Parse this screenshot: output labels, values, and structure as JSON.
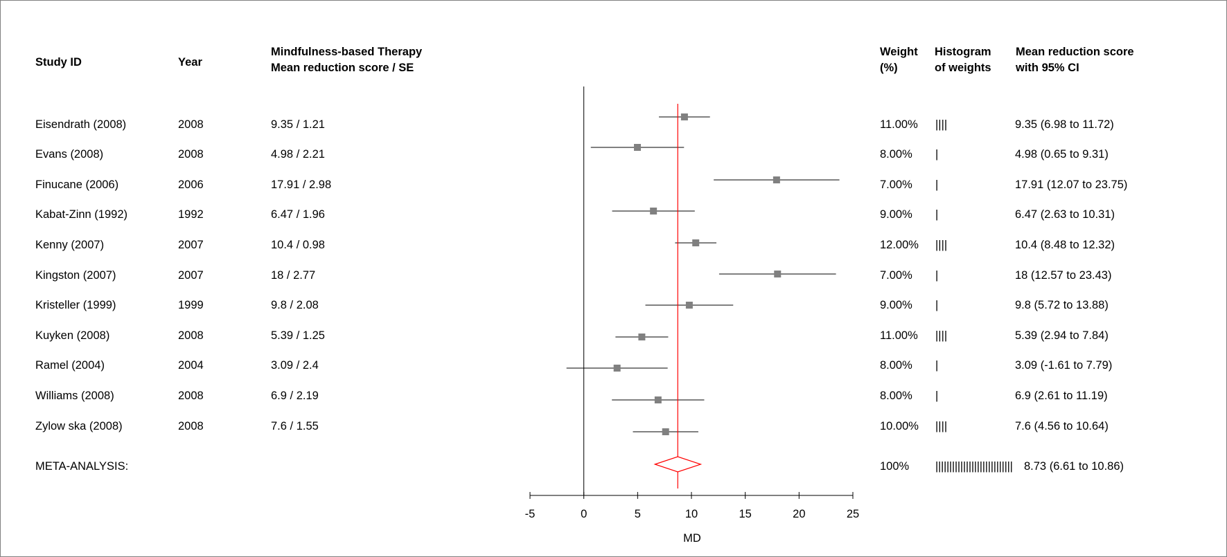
{
  "headers": {
    "study_id": "Study ID",
    "year": "Year",
    "therapy_line1": "Mindfulness-based Therapy",
    "therapy_line2": "Mean reduction score / SE",
    "weight_line1": "Weight",
    "weight_line2": "(%)",
    "hist_line1": "Histogram",
    "hist_line2": "of weights",
    "ci_line1": "Mean reduction score",
    "ci_line2": "with 95% CI"
  },
  "rows": [
    {
      "study": "Eisendrath (2008)",
      "year": "2008",
      "score_se": "9.35 / 1.21",
      "weight": "11.00%",
      "hist": "||||",
      "ci_text": "9.35 (6.98  to  11.72)"
    },
    {
      "study": "Evans (2008)",
      "year": "2008",
      "score_se": "4.98 / 2.21",
      "weight": "8.00%",
      "hist": "|",
      "ci_text": "4.98 (0.65  to  9.31)"
    },
    {
      "study": "Finucane (2006)",
      "year": "2006",
      "score_se": "17.91 / 2.98",
      "weight": "7.00%",
      "hist": "|",
      "ci_text": "17.91 (12.07  to  23.75)"
    },
    {
      "study": "Kabat-Zinn (1992)",
      "year": "1992",
      "score_se": "6.47 / 1.96",
      "weight": "9.00%",
      "hist": "|",
      "ci_text": "6.47 (2.63  to  10.31)"
    },
    {
      "study": "Kenny (2007)",
      "year": "2007",
      "score_se": "10.4 / 0.98",
      "weight": "12.00%",
      "hist": "||||",
      "ci_text": "10.4 (8.48  to  12.32)"
    },
    {
      "study": "Kingston (2007)",
      "year": "2007",
      "score_se": "18 / 2.77",
      "weight": "7.00%",
      "hist": "|",
      "ci_text": "18 (12.57  to  23.43)"
    },
    {
      "study": "Kristeller (1999)",
      "year": "1999",
      "score_se": "9.8 / 2.08",
      "weight": "9.00%",
      "hist": "|",
      "ci_text": "9.8 (5.72  to  13.88)"
    },
    {
      "study": "Kuyken (2008)",
      "year": "2008",
      "score_se": "5.39 / 1.25",
      "weight": "11.00%",
      "hist": "||||",
      "ci_text": "5.39 (2.94  to  7.84)"
    },
    {
      "study": "Ramel (2004)",
      "year": "2004",
      "score_se": "3.09 / 2.4",
      "weight": "8.00%",
      "hist": "|",
      "ci_text": "3.09 (-1.61  to  7.79)"
    },
    {
      "study": "Williams (2008)",
      "year": "2008",
      "score_se": "6.9 / 2.19",
      "weight": "8.00%",
      "hist": "|",
      "ci_text": "6.9 (2.61  to  11.19)"
    },
    {
      "study": "Zylow ska (2008)",
      "year": "2008",
      "score_se": "7.6 / 1.55",
      "weight": "10.00%",
      "hist": "||||",
      "ci_text": "7.6 (4.56  to  10.64)"
    }
  ],
  "meta": {
    "label": "META-ANALYSIS:",
    "weight": "100%",
    "hist": "||||||||||||||||||||||||||||",
    "ci_text": "8.73 (6.61 to 10.86)"
  },
  "chart_data": {
    "type": "forest",
    "xlabel": "MD",
    "xlim": [
      -5,
      25
    ],
    "xticks": [
      -5,
      0,
      5,
      10,
      15,
      20,
      25
    ],
    "null_line": 0,
    "estimates": [
      {
        "mean": 9.35,
        "lo": 6.98,
        "hi": 11.72
      },
      {
        "mean": 4.98,
        "lo": 0.65,
        "hi": 9.31
      },
      {
        "mean": 17.91,
        "lo": 12.07,
        "hi": 23.75
      },
      {
        "mean": 6.47,
        "lo": 2.63,
        "hi": 10.31
      },
      {
        "mean": 10.4,
        "lo": 8.48,
        "hi": 12.32
      },
      {
        "mean": 18,
        "lo": 12.57,
        "hi": 23.43
      },
      {
        "mean": 9.8,
        "lo": 5.72,
        "hi": 13.88
      },
      {
        "mean": 5.39,
        "lo": 2.94,
        "hi": 7.84
      },
      {
        "mean": 3.09,
        "lo": -1.61,
        "hi": 7.79
      },
      {
        "mean": 6.9,
        "lo": 2.61,
        "hi": 11.19
      },
      {
        "mean": 7.6,
        "lo": 4.56,
        "hi": 10.64
      }
    ],
    "pooled": {
      "mean": 8.73,
      "lo": 6.61,
      "hi": 10.86
    },
    "colors": {
      "pooled": "#ff0000",
      "marker": "#808080",
      "ci_line": "#000000",
      "axis": "#000000"
    }
  }
}
